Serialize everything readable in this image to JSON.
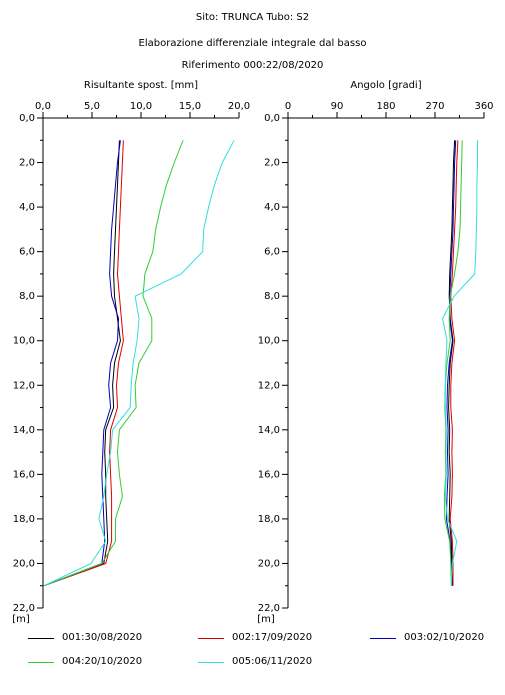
{
  "header": {
    "site_line": "Sito: TRUNCA     Tubo: S2",
    "subtitle": "Elaborazione differenziale integrale dal basso",
    "reference": "Riferimento 000:22/08/2020"
  },
  "chart_data": [
    {
      "type": "line",
      "title": "Risultante spost. [mm]",
      "xlabel": "Risultante spost. [mm]",
      "ylabel": "[m]",
      "xlim": [
        0,
        20
      ],
      "ylim": [
        22,
        0
      ],
      "x_ticks": [
        "0,0",
        "5,0",
        "10,0",
        "15,0",
        "20,0"
      ],
      "y_ticks": [
        "0,0",
        "2,0",
        "4,0",
        "6,0",
        "8,0",
        "10,0",
        "12,0",
        "14,0",
        "16,0",
        "18,0",
        "20,0",
        "22,0"
      ],
      "y_unit_label": "[m]",
      "depths": [
        1,
        2,
        3,
        4,
        5,
        6,
        7,
        8,
        9,
        10,
        11,
        12,
        13,
        14,
        15,
        16,
        17,
        18,
        19,
        20,
        21
      ],
      "series": [
        {
          "name": "001:30/08/2020",
          "color": "#000000",
          "values": [
            7.8,
            7.7,
            7.6,
            7.5,
            7.4,
            7.3,
            7.2,
            7.3,
            7.6,
            7.9,
            7.3,
            7.1,
            7.2,
            6.4,
            6.3,
            6.4,
            6.4,
            6.5,
            6.6,
            6.2,
            0.1
          ]
        },
        {
          "name": "002:17/09/2020",
          "color": "#dd0000",
          "values": [
            8.2,
            8.1,
            8.0,
            7.9,
            7.8,
            7.7,
            7.6,
            7.8,
            8.0,
            8.2,
            7.7,
            7.5,
            7.6,
            6.9,
            6.8,
            6.9,
            7.0,
            7.0,
            7.0,
            6.4,
            0.1
          ]
        },
        {
          "name": "003:02/10/2020",
          "color": "#0000bb",
          "values": [
            7.9,
            7.6,
            7.4,
            7.2,
            7.0,
            6.9,
            6.8,
            7.0,
            7.7,
            7.6,
            6.9,
            6.7,
            6.9,
            6.2,
            6.1,
            6.0,
            6.1,
            6.2,
            6.3,
            6.0,
            0.1
          ]
        },
        {
          "name": "004:20/10/2020",
          "color": "#33cc33",
          "values": [
            14.3,
            13.4,
            12.6,
            12.0,
            11.5,
            11.2,
            10.4,
            10.2,
            11.1,
            11.1,
            9.8,
            9.4,
            9.5,
            7.8,
            7.6,
            7.8,
            8.1,
            7.4,
            7.4,
            6.0,
            0.1
          ]
        },
        {
          "name": "005:06/11/2020",
          "color": "#33dddd",
          "values": [
            19.5,
            18.3,
            17.5,
            16.9,
            16.4,
            16.3,
            14.1,
            9.4,
            9.8,
            9.6,
            9.2,
            9.0,
            8.9,
            7.1,
            6.9,
            6.5,
            6.2,
            5.7,
            6.4,
            4.9,
            0.1
          ]
        }
      ]
    },
    {
      "type": "line",
      "title": "Angolo [gradi]",
      "xlabel": "Angolo [gradi]",
      "ylabel": "[m]",
      "xlim": [
        0,
        360
      ],
      "ylim": [
        22,
        0
      ],
      "x_ticks": [
        "0",
        "90",
        "180",
        "270",
        "360"
      ],
      "y_ticks": [
        "0,0",
        "2,0",
        "4,0",
        "6,0",
        "8,0",
        "10,0",
        "12,0",
        "14,0",
        "16,0",
        "18,0",
        "20,0",
        "22,0"
      ],
      "y_unit_label": "[m]",
      "depths": [
        1,
        2,
        3,
        4,
        5,
        6,
        7,
        8,
        9,
        10,
        11,
        12,
        13,
        14,
        15,
        16,
        17,
        18,
        19,
        20,
        21
      ],
      "series": [
        {
          "name": "001:30/08/2020",
          "color": "#000000",
          "values": [
            306,
            304,
            303,
            302,
            301,
            299,
            297,
            296,
            298,
            303,
            298,
            296,
            295,
            297,
            296,
            298,
            297,
            296,
            300,
            301,
            302
          ]
        },
        {
          "name": "002:17/09/2020",
          "color": "#dd0000",
          "values": [
            312,
            310,
            309,
            308,
            306,
            304,
            302,
            299,
            301,
            306,
            301,
            299,
            299,
            302,
            301,
            302,
            301,
            298,
            302,
            303,
            303
          ]
        },
        {
          "name": "003:02/10/2020",
          "color": "#0000bb",
          "values": [
            308,
            306,
            305,
            304,
            303,
            301,
            299,
            297,
            297,
            302,
            296,
            293,
            292,
            294,
            293,
            294,
            292,
            291,
            298,
            300,
            301
          ]
        },
        {
          "name": "004:20/10/2020",
          "color": "#33cc33",
          "values": [
            320,
            319,
            318,
            317,
            316,
            312,
            306,
            298,
            296,
            298,
            292,
            289,
            288,
            290,
            289,
            290,
            287,
            288,
            297,
            299,
            300
          ]
        },
        {
          "name": "005:06/11/2020",
          "color": "#33dddd",
          "values": [
            348,
            348,
            347,
            347,
            346,
            345,
            343,
            305,
            284,
            292,
            290,
            289,
            289,
            291,
            290,
            291,
            289,
            293,
            310,
            302,
            300
          ]
        }
      ]
    }
  ],
  "legend": [
    {
      "label": "001:30/08/2020",
      "color": "#000000"
    },
    {
      "label": "002:17/09/2020",
      "color": "#dd0000"
    },
    {
      "label": "003:02/10/2020",
      "color": "#0000bb"
    },
    {
      "label": "004:20/10/2020",
      "color": "#33cc33"
    },
    {
      "label": "005:06/11/2020",
      "color": "#33dddd"
    }
  ]
}
